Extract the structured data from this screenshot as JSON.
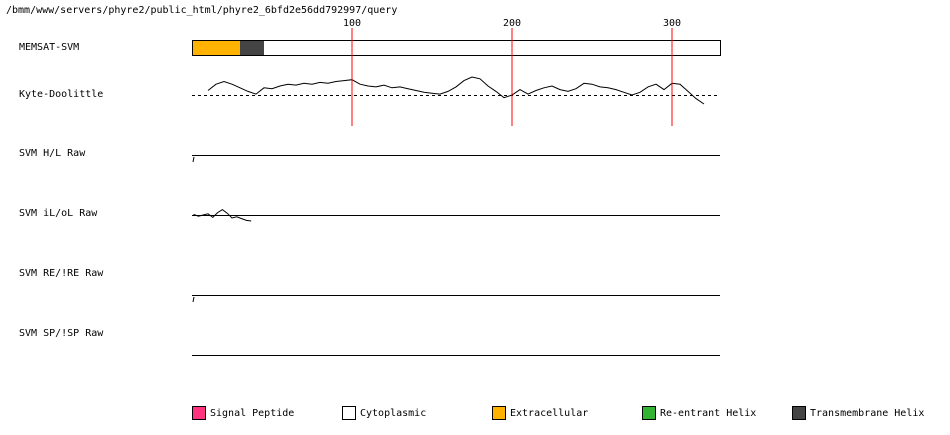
{
  "title": "/bmm/www/servers/phyre2/public_html/phyre2_6bfd2e56dd792997/query",
  "chart_data": {
    "type": "line",
    "sequence_length": 330,
    "x_ticks": [
      {
        "value": 100,
        "label": "100"
      },
      {
        "value": 200,
        "label": "200"
      },
      {
        "value": 300,
        "label": "300"
      }
    ],
    "tracks": [
      {
        "name": "MEMSAT-SVM",
        "kind": "topology"
      },
      {
        "name": "Kyte-Doolittle",
        "kind": "profile"
      },
      {
        "name": "SVM H/L Raw",
        "kind": "profile"
      },
      {
        "name": "SVM iL/oL Raw",
        "kind": "profile"
      },
      {
        "name": "SVM RE/!RE Raw",
        "kind": "profile"
      },
      {
        "name": "SVM SP/!SP Raw",
        "kind": "profile"
      }
    ],
    "memsat_segments": [
      {
        "start": 1,
        "end": 30,
        "type": "Extracellular"
      },
      {
        "start": 31,
        "end": 45,
        "type": "Transmembrane Helix"
      },
      {
        "start": 46,
        "end": 330,
        "type": "Cytoplasmic"
      }
    ],
    "kyte_doolittle": {
      "x": [
        10,
        15,
        20,
        25,
        30,
        35,
        40,
        45,
        50,
        55,
        60,
        65,
        70,
        75,
        80,
        85,
        90,
        95,
        100,
        105,
        110,
        115,
        120,
        125,
        130,
        135,
        140,
        145,
        150,
        155,
        160,
        165,
        170,
        175,
        180,
        185,
        190,
        195,
        200,
        205,
        210,
        215,
        220,
        225,
        230,
        235,
        240,
        245,
        250,
        255,
        260,
        265,
        270,
        275,
        280,
        285,
        290,
        295,
        300,
        305,
        310,
        315,
        320
      ],
      "y": [
        0.5,
        1.2,
        1.5,
        1.2,
        0.8,
        0.4,
        0.1,
        0.8,
        0.7,
        1.0,
        1.2,
        1.1,
        1.3,
        1.2,
        1.4,
        1.3,
        1.5,
        1.6,
        1.7,
        1.2,
        1.0,
        0.9,
        1.1,
        0.8,
        0.9,
        0.7,
        0.5,
        0.3,
        0.2,
        0.1,
        0.4,
        0.9,
        1.6,
        2.0,
        1.8,
        1.0,
        0.4,
        -0.3,
        0.0,
        0.6,
        0.1,
        0.5,
        0.8,
        1.0,
        0.6,
        0.4,
        0.7,
        1.3,
        1.2,
        0.9,
        0.8,
        0.6,
        0.3,
        0.0,
        0.3,
        0.9,
        1.2,
        0.6,
        1.3,
        1.2,
        0.4,
        -0.4,
        -1.0
      ],
      "threshold": 0
    },
    "svm_il_ol": {
      "x": [
        1,
        4,
        7,
        10,
        13,
        16,
        19,
        22,
        25,
        28,
        31,
        34,
        37
      ],
      "y": [
        0.1,
        -0.2,
        0.0,
        0.2,
        -0.4,
        0.4,
        0.9,
        0.3,
        -0.5,
        -0.3,
        -0.6,
        -0.9,
        -1.0
      ]
    }
  },
  "legend": [
    {
      "label": "Signal Peptide",
      "color": "#ff3380"
    },
    {
      "label": "Cytoplasmic",
      "color": "#ffffff"
    },
    {
      "label": "Extracellular",
      "color": "#ffb300"
    },
    {
      "label": "Re-entrant Helix",
      "color": "#33b333"
    },
    {
      "label": "Transmembrane Helix",
      "color": "#444444"
    }
  ]
}
